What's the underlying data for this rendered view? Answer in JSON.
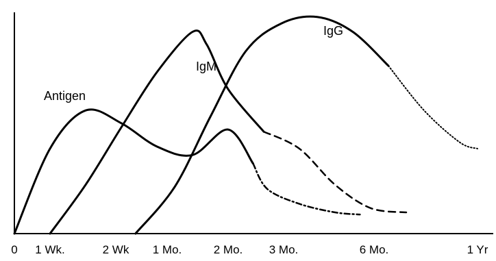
{
  "chart_data": {
    "type": "line",
    "title": "",
    "xlabel": "",
    "ylabel": "",
    "grid": false,
    "legend": "none",
    "x_tick_labels": [
      "0",
      "1 Wk.",
      "2 Wk",
      "1 Mo.",
      "2 Mo.",
      "3 Mo.",
      "6 Mo.",
      "1 Yr"
    ],
    "ylim": [
      0,
      100
    ],
    "series": [
      {
        "name": "Antigen",
        "label": "Antigen",
        "solid": [
          [
            0,
            0
          ],
          [
            1,
            40
          ],
          [
            2,
            58
          ],
          [
            3,
            52
          ],
          [
            4,
            41
          ],
          [
            5,
            37
          ],
          [
            6,
            49
          ],
          [
            6.7,
            33
          ]
        ],
        "faded": [
          [
            6.7,
            33
          ],
          [
            7.1,
            21
          ],
          [
            8,
            14
          ],
          [
            9,
            10
          ],
          [
            9.7,
            9
          ]
        ],
        "faded_style": "dashdot"
      },
      {
        "name": "IgM",
        "label": "IgM",
        "solid": [
          [
            1,
            0
          ],
          [
            2,
            23
          ],
          [
            3,
            50
          ],
          [
            4,
            76
          ],
          [
            5,
            95
          ],
          [
            5.4,
            89
          ],
          [
            6,
            68
          ],
          [
            7,
            48
          ]
        ],
        "faded": [
          [
            7,
            48
          ],
          [
            8,
            40
          ],
          [
            9,
            23
          ],
          [
            10,
            12
          ],
          [
            11,
            10
          ]
        ],
        "faded_style": "dash"
      },
      {
        "name": "IgG",
        "label": "IgG",
        "solid": [
          [
            3.4,
            0
          ],
          [
            4.5,
            22
          ],
          [
            5.5,
            55
          ],
          [
            6.5,
            86
          ],
          [
            7.5,
            99
          ],
          [
            8.5,
            102
          ],
          [
            9.5,
            95
          ],
          [
            10.5,
            79
          ]
        ],
        "faded": [
          [
            10.5,
            79
          ],
          [
            11.5,
            58
          ],
          [
            12.5,
            43
          ],
          [
            13,
            40
          ]
        ],
        "faded_style": "dotted"
      }
    ]
  }
}
